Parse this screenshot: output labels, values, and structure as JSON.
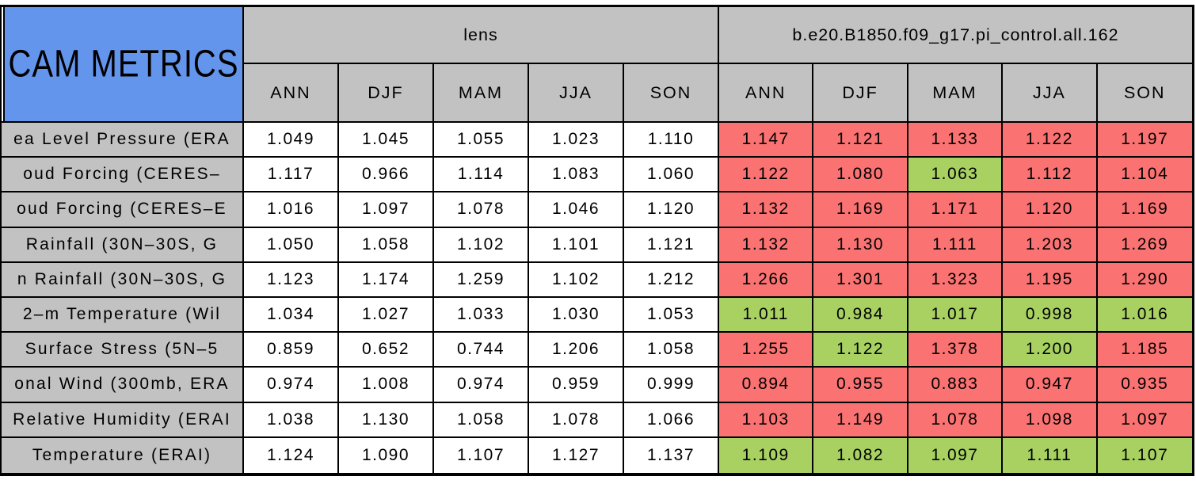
{
  "title": {
    "label": "CAM METRICS"
  },
  "colors": {
    "red": "#fa7272",
    "green": "#a8d162",
    "blue": "#6495ed",
    "gray": "#c2c2c2",
    "border": "#000000",
    "lens_cell": "#ffffff"
  },
  "header": {
    "group_left": "lens",
    "group_right": "b.e20.B1850.f09_g17.pi_control.all.162",
    "seasons": [
      "ANN",
      "DJF",
      "MAM",
      "JJA",
      "SON"
    ]
  },
  "chart_data": {
    "type": "table",
    "title": "CAM METRICS",
    "column_groups": [
      "lens",
      "b.e20.B1850.f09_g17.pi_control.all.162"
    ],
    "columns": [
      "ANN",
      "DJF",
      "MAM",
      "JJA",
      "SON"
    ],
    "rows": [
      {
        "label": "ea Level Pressure (ERA",
        "lens": [
          "1.049",
          "1.045",
          "1.055",
          "1.023",
          "1.110"
        ],
        "case": [
          "1.147",
          "1.121",
          "1.133",
          "1.122",
          "1.197"
        ],
        "case_colors": [
          "red",
          "red",
          "red",
          "red",
          "red"
        ]
      },
      {
        "label": "oud Forcing (CERES–",
        "lens": [
          "1.117",
          "0.966",
          "1.114",
          "1.083",
          "1.060"
        ],
        "case": [
          "1.122",
          "1.080",
          "1.063",
          "1.112",
          "1.104"
        ],
        "case_colors": [
          "red",
          "red",
          "green",
          "red",
          "red"
        ]
      },
      {
        "label": "oud Forcing (CERES–E",
        "lens": [
          "1.016",
          "1.097",
          "1.078",
          "1.046",
          "1.120"
        ],
        "case": [
          "1.132",
          "1.169",
          "1.171",
          "1.120",
          "1.169"
        ],
        "case_colors": [
          "red",
          "red",
          "red",
          "red",
          "red"
        ]
      },
      {
        "label": "Rainfall (30N–30S, G",
        "lens": [
          "1.050",
          "1.058",
          "1.102",
          "1.101",
          "1.121"
        ],
        "case": [
          "1.132",
          "1.130",
          "1.111",
          "1.203",
          "1.269"
        ],
        "case_colors": [
          "red",
          "red",
          "red",
          "red",
          "red"
        ]
      },
      {
        "label": "n Rainfall (30N–30S, G",
        "lens": [
          "1.123",
          "1.174",
          "1.259",
          "1.102",
          "1.212"
        ],
        "case": [
          "1.266",
          "1.301",
          "1.323",
          "1.195",
          "1.290"
        ],
        "case_colors": [
          "red",
          "red",
          "red",
          "red",
          "red"
        ]
      },
      {
        "label": "2–m Temperature (Wil",
        "lens": [
          "1.034",
          "1.027",
          "1.033",
          "1.030",
          "1.053"
        ],
        "case": [
          "1.011",
          "0.984",
          "1.017",
          "0.998",
          "1.016"
        ],
        "case_colors": [
          "green",
          "green",
          "green",
          "green",
          "green"
        ]
      },
      {
        "label": "Surface Stress (5N–5",
        "lens": [
          "0.859",
          "0.652",
          "0.744",
          "1.206",
          "1.058"
        ],
        "case": [
          "1.255",
          "1.122",
          "1.378",
          "1.200",
          "1.185"
        ],
        "case_colors": [
          "red",
          "green",
          "red",
          "green",
          "red"
        ]
      },
      {
        "label": "onal Wind (300mb, ERA",
        "lens": [
          "0.974",
          "1.008",
          "0.974",
          "0.959",
          "0.999"
        ],
        "case": [
          "0.894",
          "0.955",
          "0.883",
          "0.947",
          "0.935"
        ],
        "case_colors": [
          "red",
          "red",
          "red",
          "red",
          "red"
        ]
      },
      {
        "label": "Relative Humidity (ERAI",
        "lens": [
          "1.038",
          "1.130",
          "1.058",
          "1.078",
          "1.066"
        ],
        "case": [
          "1.103",
          "1.149",
          "1.078",
          "1.098",
          "1.097"
        ],
        "case_colors": [
          "red",
          "red",
          "red",
          "red",
          "red"
        ]
      },
      {
        "label": "Temperature (ERAI)",
        "lens": [
          "1.124",
          "1.090",
          "1.107",
          "1.127",
          "1.137"
        ],
        "case": [
          "1.109",
          "1.082",
          "1.097",
          "1.111",
          "1.107"
        ],
        "case_colors": [
          "green",
          "green",
          "green",
          "green",
          "green"
        ]
      }
    ]
  }
}
